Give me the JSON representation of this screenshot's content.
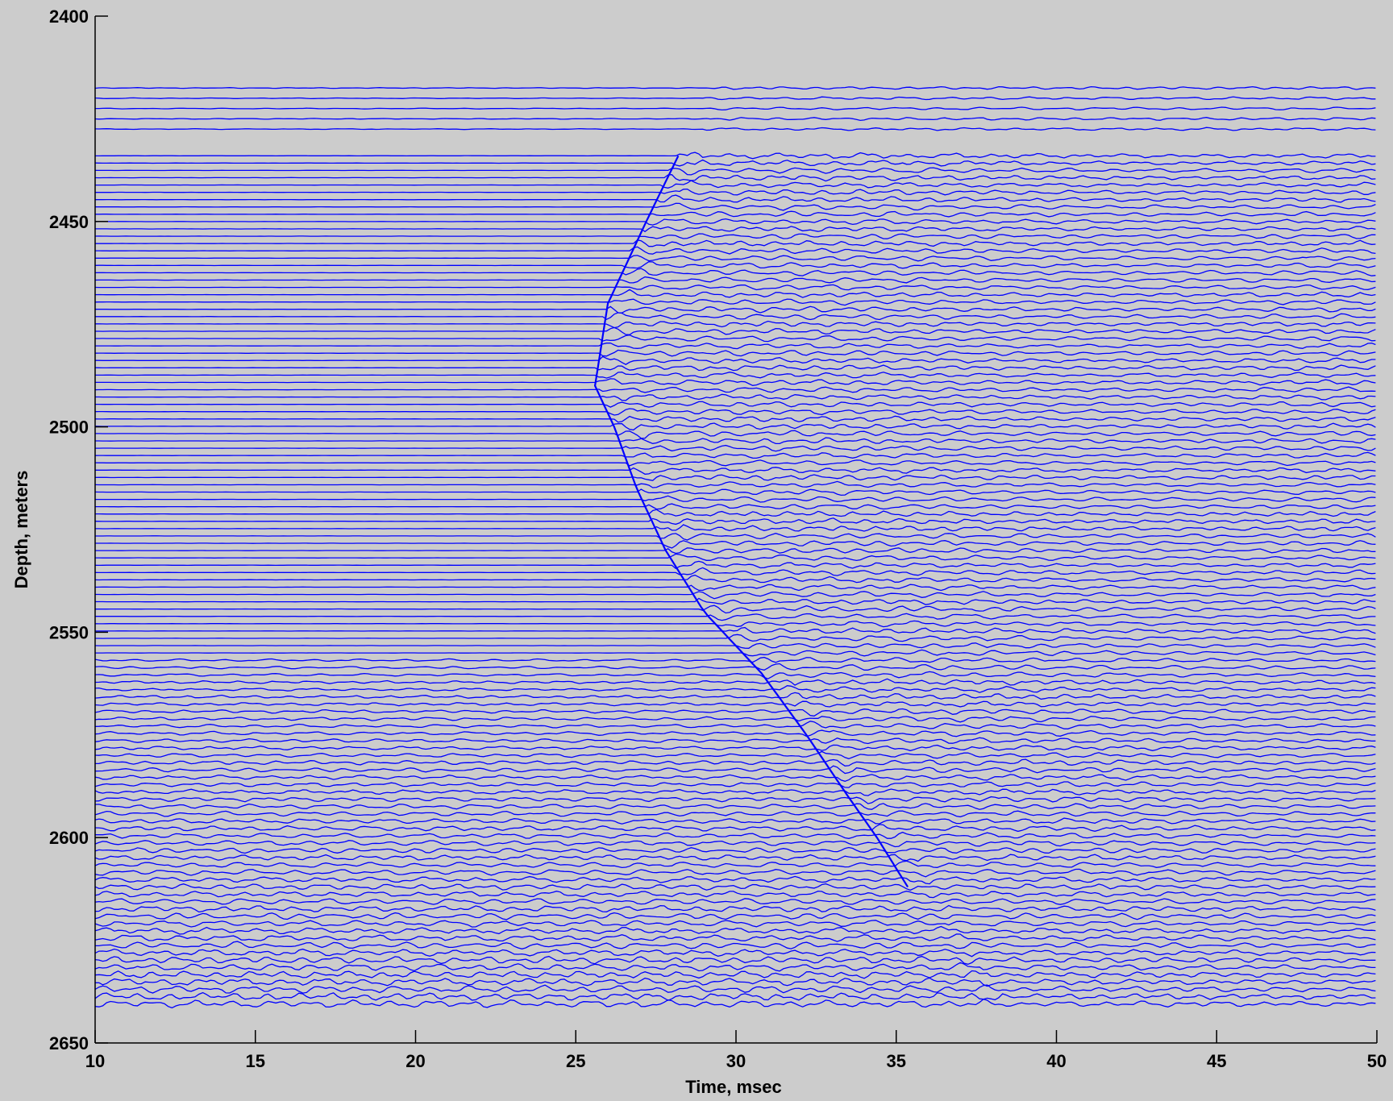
{
  "chart_data": {
    "type": "line",
    "title": "",
    "xlabel": "Time, msec",
    "ylabel": "Depth, meters",
    "xlim": [
      10,
      50
    ],
    "ylim": [
      2400,
      2650
    ],
    "y_reversed": true,
    "xticks": [
      10,
      15,
      20,
      25,
      30,
      35,
      40,
      45,
      50
    ],
    "yticks": [
      2400,
      2450,
      2500,
      2550,
      2600,
      2650
    ],
    "grid": false,
    "legend": "none",
    "line_color": "#0000ff",
    "traces": {
      "kind": "seismic wiggle traces (one trace per receiver depth)",
      "depth_start": 2417.5,
      "depth_end": 2641.5,
      "time_start": 10,
      "time_end": 50,
      "gap_after_depth": 2427.5,
      "approx_count": 130
    },
    "first_break_curve": {
      "depth": [
        2434,
        2450,
        2470,
        2490,
        2500,
        2515,
        2530,
        2545,
        2560,
        2575,
        2590,
        2600,
        2610
      ],
      "time": [
        28.2,
        27.2,
        26.0,
        25.6,
        26.2,
        26.9,
        27.8,
        29.0,
        30.8,
        32.2,
        33.5,
        34.4,
        35.2
      ]
    }
  }
}
